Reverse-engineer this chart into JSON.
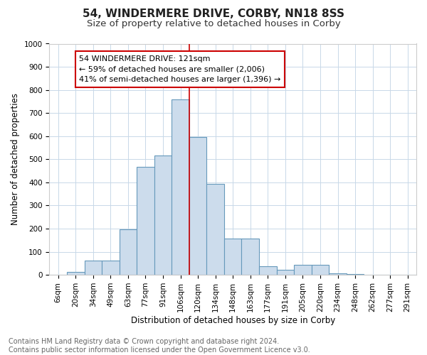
{
  "title1": "54, WINDERMERE DRIVE, CORBY, NN18 8SS",
  "title2": "Size of property relative to detached houses in Corby",
  "xlabel": "Distribution of detached houses by size in Corby",
  "ylabel": "Number of detached properties",
  "categories": [
    "6sqm",
    "20sqm",
    "34sqm",
    "49sqm",
    "63sqm",
    "77sqm",
    "91sqm",
    "106sqm",
    "120sqm",
    "134sqm",
    "148sqm",
    "163sqm",
    "177sqm",
    "191sqm",
    "205sqm",
    "220sqm",
    "234sqm",
    "248sqm",
    "262sqm",
    "277sqm",
    "291sqm"
  ],
  "values": [
    0,
    14,
    62,
    62,
    196,
    468,
    516,
    758,
    597,
    392,
    157,
    157,
    36,
    22,
    44,
    44,
    6,
    3,
    1,
    0,
    0
  ],
  "bar_color": "#ccdcec",
  "bar_edge_color": "#6699bb",
  "bar_linewidth": 0.8,
  "vline_x_index": 8,
  "vline_color": "#cc0000",
  "annotation_line1": "54 WINDERMERE DRIVE: 121sqm",
  "annotation_line2": "← 59% of detached houses are smaller (2,006)",
  "annotation_line3": "41% of semi-detached houses are larger (1,396) →",
  "annotation_box_color": "#ffffff",
  "annotation_box_edge_color": "#cc0000",
  "ylim": [
    0,
    1000
  ],
  "yticks": [
    0,
    100,
    200,
    300,
    400,
    500,
    600,
    700,
    800,
    900,
    1000
  ],
  "footer1": "Contains HM Land Registry data © Crown copyright and database right 2024.",
  "footer2": "Contains public sector information licensed under the Open Government Licence v3.0.",
  "bg_color": "#ffffff",
  "plot_bg_color": "#ffffff",
  "title1_fontsize": 11,
  "title2_fontsize": 9.5,
  "tick_fontsize": 7.5,
  "ylabel_fontsize": 8.5,
  "xlabel_fontsize": 8.5,
  "footer_fontsize": 7,
  "annotation_fontsize": 8
}
